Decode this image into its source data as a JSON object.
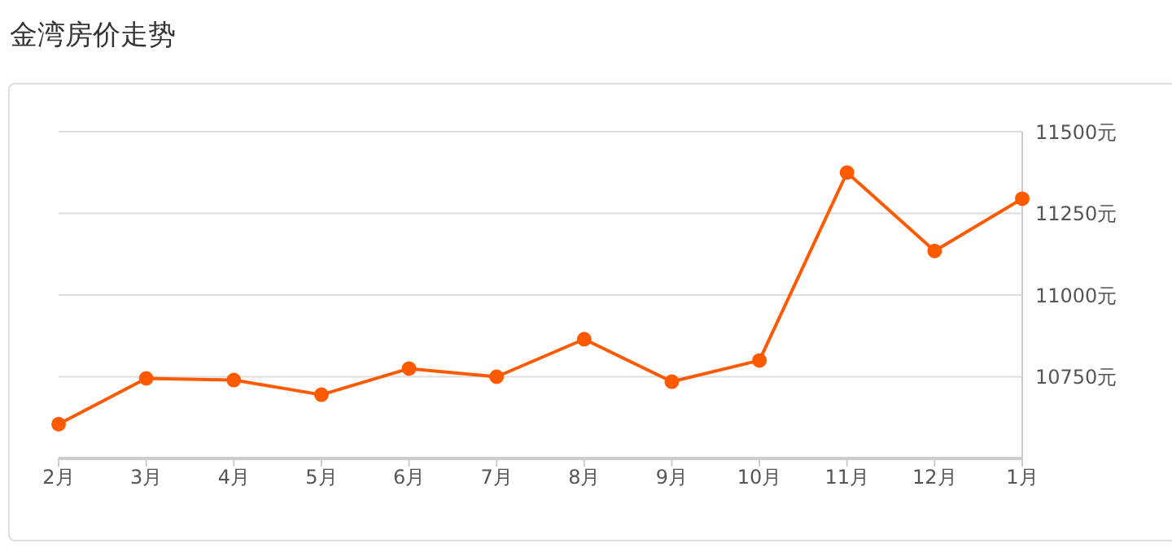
{
  "chart_data": {
    "type": "line",
    "title": "金湾房价走势",
    "categories": [
      "2月",
      "3月",
      "4月",
      "5月",
      "6月",
      "7月",
      "8月",
      "9月",
      "10月",
      "11月",
      "12月",
      "1月"
    ],
    "series": [
      {
        "color": "#ff5a00",
        "values": [
          10605,
          10745,
          10740,
          10695,
          10775,
          10750,
          10865,
          10735,
          10800,
          11375,
          11135,
          11295
        ]
      }
    ],
    "ylim": [
      10500,
      11500
    ],
    "yticks": [
      {
        "value": 10750,
        "label": "10750元"
      },
      {
        "value": 11000,
        "label": "11000元"
      },
      {
        "value": 11250,
        "label": "11250元"
      },
      {
        "value": 11500,
        "label": "11500元"
      }
    ],
    "grid": "y",
    "marker": "circle",
    "line_style": "solid",
    "legend": false
  }
}
